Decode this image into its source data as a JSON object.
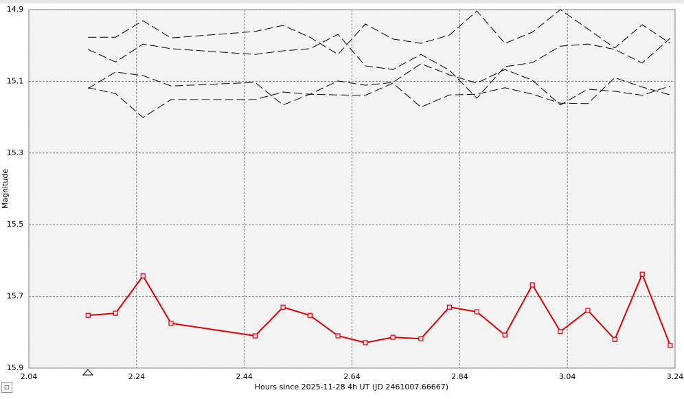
{
  "chart_data": {
    "type": "line",
    "x_label": "Hours since 2025-11-28 4h UT (JD 2461007.66667)",
    "y_label": "Magnitude",
    "xlim": [
      2.04,
      3.24
    ],
    "xticks": [
      2.04,
      2.24,
      2.44,
      2.64,
      2.84,
      3.04,
      3.24
    ],
    "ylim": [
      15.9,
      14.9
    ],
    "yticks": [
      14.9,
      15.1,
      15.3,
      15.5,
      15.7,
      15.9
    ],
    "grid": true,
    "x": [
      2.15,
      2.201,
      2.252,
      2.304,
      2.46,
      2.512,
      2.562,
      2.614,
      2.665,
      2.716,
      2.768,
      2.821,
      2.872,
      2.924,
      2.975,
      3.027,
      3.078,
      3.128,
      3.179,
      3.231
    ],
    "series": [
      {
        "color": "#000000",
        "dashed": true,
        "markers": false,
        "values": [
          14.977,
          14.977,
          14.931,
          14.979,
          14.961,
          14.944,
          14.977,
          15.025,
          14.94,
          14.982,
          14.994,
          14.971,
          14.904,
          14.994,
          14.963,
          14.9,
          14.954,
          15.007,
          14.942,
          14.994
        ]
      },
      {
        "color": "#000000",
        "dashed": true,
        "markers": false,
        "values": [
          15.011,
          15.046,
          14.996,
          15.009,
          15.025,
          15.015,
          15.009,
          14.969,
          15.057,
          15.067,
          15.025,
          15.069,
          15.147,
          15.059,
          15.048,
          15.002,
          14.996,
          15.011,
          15.049,
          14.98
        ]
      },
      {
        "color": "#000000",
        "dashed": true,
        "markers": false,
        "values": [
          15.12,
          15.074,
          15.084,
          15.113,
          15.103,
          15.166,
          15.136,
          15.099,
          15.111,
          15.103,
          15.051,
          15.082,
          15.105,
          15.067,
          15.097,
          15.166,
          15.122,
          15.128,
          15.139,
          15.113
        ]
      },
      {
        "color": "#000000",
        "dashed": true,
        "markers": false,
        "values": [
          15.118,
          15.134,
          15.201,
          15.151,
          15.151,
          15.13,
          15.136,
          15.138,
          15.139,
          15.105,
          15.172,
          15.138,
          15.136,
          15.118,
          15.136,
          15.161,
          15.162,
          15.09,
          15.116,
          15.138
        ]
      },
      {
        "color": "#e00000",
        "dashed": false,
        "markers": true,
        "values": [
          15.753,
          15.747,
          15.643,
          15.775,
          15.81,
          15.73,
          15.753,
          15.81,
          15.829,
          15.814,
          15.818,
          15.73,
          15.743,
          15.808,
          15.668,
          15.798,
          15.739,
          15.82,
          15.638,
          15.837
        ]
      }
    ]
  }
}
